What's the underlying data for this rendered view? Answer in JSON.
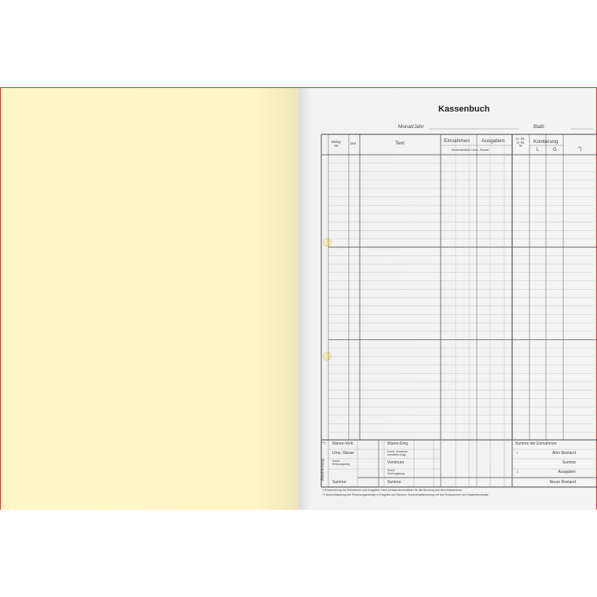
{
  "form": {
    "title": "Kassenbuch",
    "month_year_label": "Monat/Jahr",
    "sheet_label": "Blatt:",
    "headers": {
      "beleg": "Beleg-\nNr.",
      "date": "Dat.",
      "text": "Text",
      "income": "Einnahmen",
      "expenses": "Ausgaben",
      "incl_tax": "einschließlich Ums.-Steuer",
      "vat": "U.-St.\nV.-St.\n%",
      "account": "Kontierung",
      "l": "L",
      "g": "G",
      "note": "*)"
    },
    "summary": {
      "side_label": "Abstimmung",
      "side_mark": "**)",
      "left": [
        "Waren-Verk.",
        "Ums.-Steuer",
        "Sonst.\nErlösungseing.",
        "",
        "Summe:"
      ],
      "mid": [
        "Waren-Eing.",
        "Sonst. Vorsteuer\nbehaftete Ausg.",
        "Vorsteuer",
        "Sonst.\nZahlungsausg.",
        "Summe:"
      ],
      "right": [
        "Summe der Einnahmen",
        "Alter Bestand",
        "Summe",
        "Ausgaben",
        "Neuer Bestand"
      ],
      "right_signs": [
        "",
        "+",
        "",
        "./.",
        ""
      ]
    },
    "footnotes": [
      "*)   Einsteuerung der Einnahmen und Ausgaben nach Umsatzsteuersätzen für die Buchung aus dem Kassenbuch.",
      "**)  Aufschlüsselung der Rechnungsbeträge in Entgelte und Steuern. Summenabstimmung mit den Endsummen der Kassenbuchseite."
    ]
  }
}
